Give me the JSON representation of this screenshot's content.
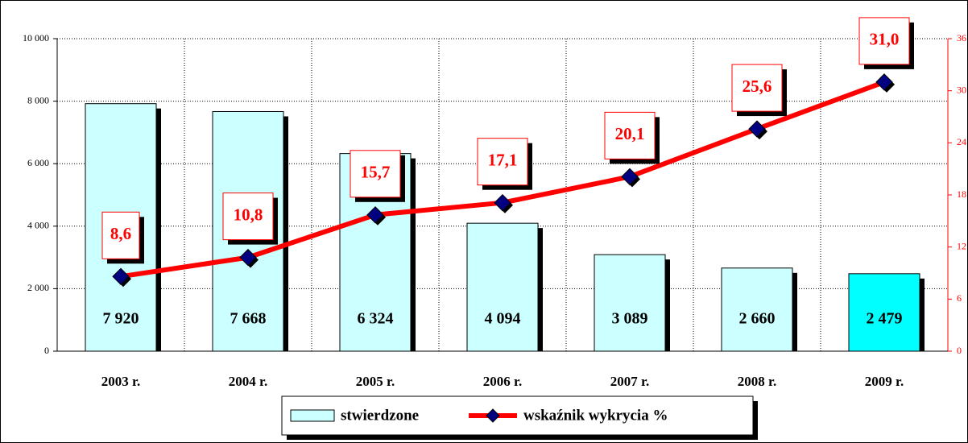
{
  "chart_data": {
    "type": "bar",
    "categories": [
      "2003 r.",
      "2004 r.",
      "2005 r.",
      "2006 r.",
      "2007 r.",
      "2008 r.",
      "2009 r."
    ],
    "series": [
      {
        "name": "stwierdzone",
        "type": "bar",
        "colors": [
          "#ccffff",
          "#ccffff",
          "#ccffff",
          "#ccffff",
          "#ccffff",
          "#ccffff",
          "#00ffff"
        ],
        "values": [
          7920,
          7668,
          6324,
          4094,
          3089,
          2660,
          2479
        ],
        "value_labels": [
          "7 920",
          "7 668",
          "6 324",
          "4 094",
          "3 089",
          "2 660",
          "2 479"
        ]
      },
      {
        "name": "wskaźnik wykrycia %",
        "type": "line",
        "axis": "y2",
        "color": "#ff0000",
        "marker_color": "#000080",
        "values": [
          8.6,
          10.8,
          15.7,
          17.1,
          20.1,
          25.6,
          31.0
        ],
        "value_labels": [
          "8,6",
          "10,8",
          "15,7",
          "17,1",
          "20,1",
          "25,6",
          "31,0"
        ]
      }
    ],
    "ylim": [
      0,
      10000
    ],
    "yticks": [
      0,
      {
        "value": 2000,
        "label": "2 000"
      },
      {
        "value": 4000,
        "label": "4 000"
      },
      {
        "value": 6000,
        "label": "6 000"
      },
      {
        "value": 8000,
        "label": "8 000"
      },
      {
        "value": 10000,
        "label": "10 000"
      }
    ],
    "y2lim": [
      0,
      36
    ],
    "y2ticks": [
      0,
      6,
      12,
      18,
      24,
      30,
      36
    ],
    "grid": true,
    "legend": "bottom"
  }
}
